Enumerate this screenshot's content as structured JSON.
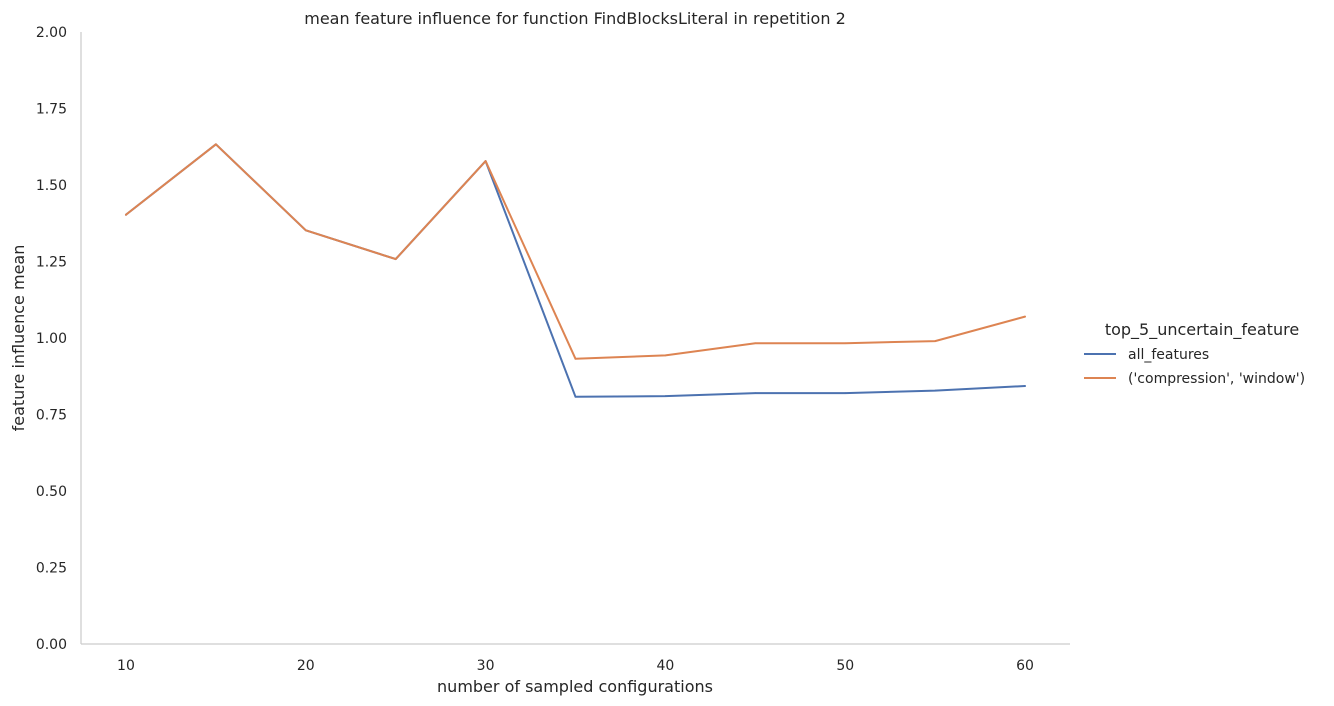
{
  "chart_data": {
    "type": "line",
    "title": "mean feature influence for function FindBlocksLiteral in repetition 2",
    "xlabel": "number of sampled configurations",
    "ylabel": "feature influence mean",
    "xlim": [
      7.5,
      62.5
    ],
    "ylim": [
      0,
      2
    ],
    "xticks": [
      10,
      20,
      30,
      40,
      50,
      60
    ],
    "xtick_labels": [
      "10",
      "20",
      "30",
      "40",
      "50",
      "60"
    ],
    "yticks": [
      0,
      0.25,
      0.5,
      0.75,
      1.0,
      1.25,
      1.5,
      1.75,
      2.0
    ],
    "ytick_labels": [
      "0.00",
      "0.25",
      "0.50",
      "0.75",
      "1.00",
      "1.25",
      "1.50",
      "1.75",
      "2.00"
    ],
    "grid": false,
    "legend": {
      "title": "top_5_uncertain_feature",
      "placement": "right"
    },
    "x": [
      10,
      15,
      20,
      25,
      30,
      35,
      40,
      45,
      50,
      55,
      60
    ],
    "series": [
      {
        "name": "all_features",
        "color": "#4c72b0",
        "values": [
          1.403,
          1.633,
          1.352,
          1.258,
          1.578,
          0.808,
          0.81,
          0.82,
          0.82,
          0.828,
          0.843
        ]
      },
      {
        "name": "('compression', 'window')",
        "color": "#dd8452",
        "values": [
          1.403,
          1.633,
          1.352,
          1.258,
          1.578,
          0.932,
          0.943,
          0.983,
          0.983,
          0.99,
          1.07
        ]
      }
    ]
  }
}
